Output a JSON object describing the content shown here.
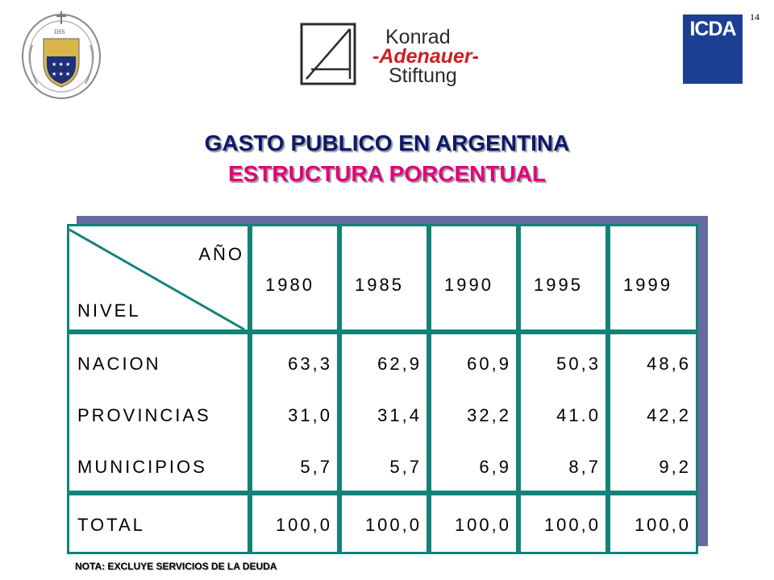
{
  "header": {
    "crest_motto": "VERITAS LIBERABIT VOS",
    "crest_monogram": "IHS",
    "kas_logo": {
      "line1": "Konrad",
      "line2": "-Adenauer-",
      "line3": "Stiftung"
    },
    "icda_logo": "ICDA",
    "page_number": "14"
  },
  "title": "GASTO PUBLICO EN ARGENTINA",
  "subtitle": "ESTRUCTURA PORCENTUAL",
  "colors": {
    "title": "#0b1a6b",
    "subtitle": "#e2007a",
    "grid_border": "#138278",
    "shadow": "#646b9e",
    "icda": "#1c3f93"
  },
  "table": {
    "corner_top": "AÑO",
    "corner_bottom": "NIVEL",
    "years": [
      "1980",
      "1985",
      "1990",
      "1995",
      "1999"
    ],
    "rows": [
      {
        "label": "NACION",
        "values": [
          "63,3",
          "62,9",
          "60,9",
          "50,3",
          "48,6"
        ]
      },
      {
        "label": "PROVINCIAS",
        "values": [
          "31,0",
          "31,4",
          "32,2",
          "41.0",
          "42,2"
        ]
      },
      {
        "label": "MUNICIPIOS",
        "values": [
          "5,7",
          "5,7",
          "6,9",
          "8,7",
          "9,2"
        ]
      }
    ],
    "total": {
      "label": "TOTAL",
      "values": [
        "100,0",
        "100,0",
        "100,0",
        "100,0",
        "100,0"
      ]
    }
  },
  "note": "NOTA: EXCLUYE SERVICIOS DE LA DEUDA"
}
